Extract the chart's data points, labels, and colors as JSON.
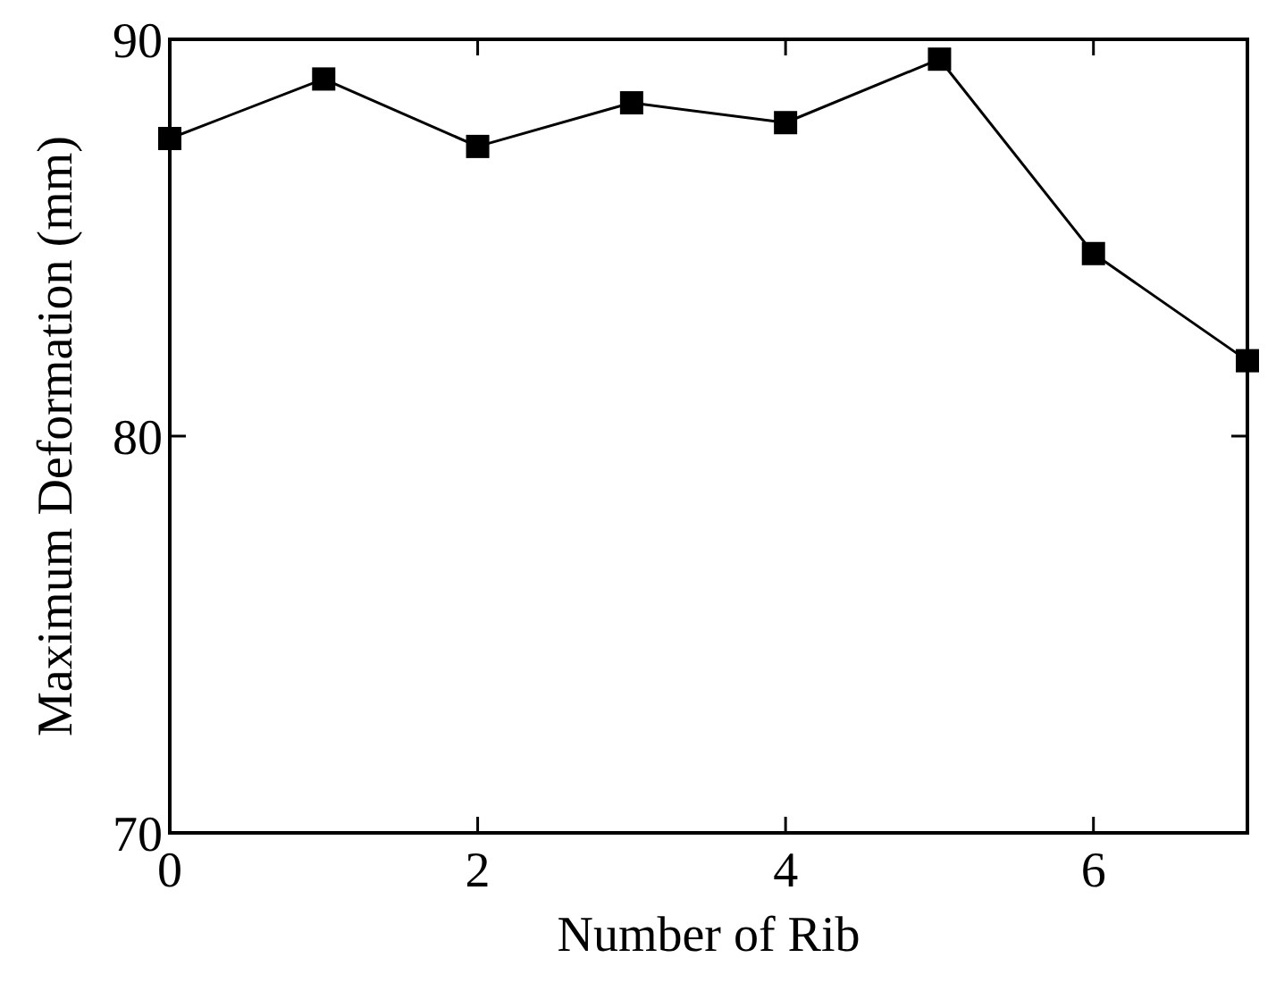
{
  "chart_data": {
    "type": "line",
    "xlabel": "Number of Rib",
    "ylabel": "Maximum Deformation (mm)",
    "x": [
      0,
      1,
      2,
      3,
      4,
      5,
      6,
      7
    ],
    "series": [
      {
        "color": "#000000",
        "values": [
          87.5,
          89.0,
          87.3,
          88.4,
          87.9,
          89.5,
          84.6,
          81.9
        ]
      }
    ],
    "xlim": [
      0,
      7
    ],
    "xticks": [
      0,
      2,
      4,
      6
    ],
    "ylim": [
      70,
      90
    ],
    "yticks": [
      70,
      80,
      90
    ],
    "marker": "square",
    "line_style": "solid"
  }
}
